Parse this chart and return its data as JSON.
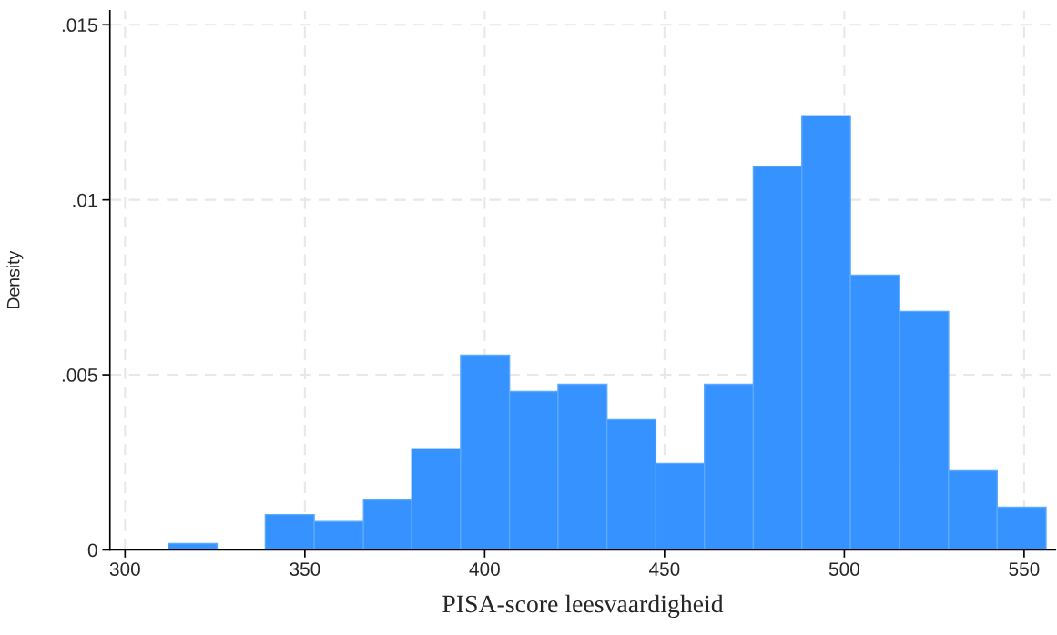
{
  "chart_data": {
    "type": "histogram",
    "xlabel": "PISA-score leesvaardigheid",
    "ylabel": "Density",
    "bins": [
      312.0,
      325.6,
      339.0,
      352.6,
      366.3,
      379.7,
      393.3,
      406.9,
      420.4,
      434.0,
      447.6,
      461.1,
      474.7,
      488.2,
      501.7,
      515.4,
      529.0,
      542.5,
      556.1
    ],
    "values": [
      0.00018,
      0,
      0.00101,
      0.00081,
      0.00143,
      0.00289,
      0.00556,
      0.00452,
      0.00473,
      0.00372,
      0.00247,
      0.00473,
      0.01095,
      0.0124,
      0.00785,
      0.00681,
      0.00226,
      0.00122
    ],
    "color": "#3592fe",
    "xlim": [
      295.8,
      558.7
    ],
    "ylim": [
      0,
      0.0154
    ],
    "xticks": [
      300,
      350,
      400,
      450,
      500,
      550
    ],
    "yticks": [
      {
        "value": 0,
        "label": "0"
      },
      {
        "value": 0.005,
        "label": ".005"
      },
      {
        "value": 0.01,
        "label": ".01"
      },
      {
        "value": 0.015,
        "label": ".015"
      }
    ],
    "grid": true
  }
}
